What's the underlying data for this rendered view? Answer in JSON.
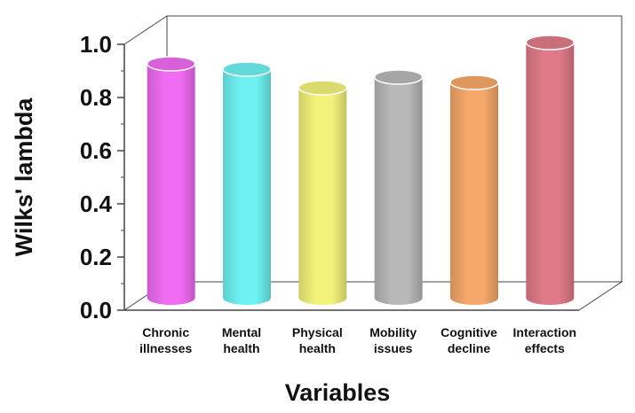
{
  "chart_data": {
    "type": "bar",
    "style": "3d-cylinder",
    "categories": [
      [
        "Chronic",
        "illnesses"
      ],
      [
        "Mental",
        "health"
      ],
      [
        "Physical",
        "health"
      ],
      [
        "Mobility",
        "issues"
      ],
      [
        "Cognitive",
        "decline"
      ],
      [
        "Interaction",
        "effects"
      ]
    ],
    "values": [
      0.88,
      0.86,
      0.79,
      0.83,
      0.81,
      0.96
    ],
    "colors": [
      "#f06cf2",
      "#6ff1f1",
      "#f2f27a",
      "#b8b8b8",
      "#f5a86a",
      "#e07a88"
    ],
    "title": "",
    "xlabel": "Variables",
    "ylabel": "Wilks' lambda",
    "ylim": [
      0,
      1.0
    ],
    "yticks": [
      "0.0",
      "0.2",
      "0.4",
      "0.6",
      "0.8",
      "1.0"
    ],
    "grid": false,
    "legend": "none"
  }
}
